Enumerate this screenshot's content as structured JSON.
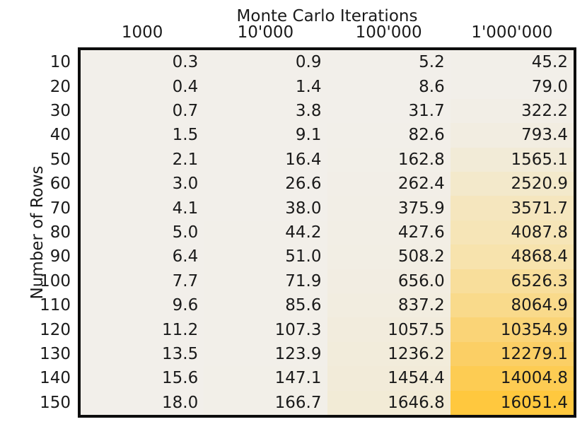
{
  "chart_data": {
    "type": "heatmap",
    "title": "Monte Carlo Iterations",
    "xlabel": "Monte Carlo Iterations",
    "ylabel": "Number of Rows",
    "x_tick_labels": [
      "1000",
      "10'000",
      "100'000",
      "1'000'000"
    ],
    "y_tick_labels": [
      "10",
      "20",
      "30",
      "40",
      "50",
      "60",
      "70",
      "80",
      "90",
      "100",
      "110",
      "120",
      "130",
      "140",
      "150"
    ],
    "values": [
      [
        0.3,
        0.9,
        5.2,
        45.2
      ],
      [
        0.4,
        1.4,
        8.6,
        79.0
      ],
      [
        0.7,
        3.8,
        31.7,
        322.2
      ],
      [
        1.5,
        9.1,
        82.6,
        793.4
      ],
      [
        2.1,
        16.4,
        162.8,
        1565.1
      ],
      [
        3.0,
        26.6,
        262.4,
        2520.9
      ],
      [
        4.1,
        38.0,
        375.9,
        3571.7
      ],
      [
        5.0,
        44.2,
        427.6,
        4087.8
      ],
      [
        6.4,
        51.0,
        508.2,
        4868.4
      ],
      [
        7.7,
        71.9,
        656.0,
        6526.3
      ],
      [
        9.6,
        85.6,
        837.2,
        8064.9
      ],
      [
        11.2,
        107.3,
        1057.5,
        10354.9
      ],
      [
        13.5,
        123.9,
        1236.2,
        12279.1
      ],
      [
        15.6,
        147.1,
        1454.4,
        14004.8
      ],
      [
        18.0,
        166.7,
        1646.8,
        16051.4
      ]
    ],
    "decimals": 1,
    "grid": false,
    "legend": false,
    "color_scale": {
      "min": 0,
      "max": 16051.4,
      "stops": [
        {
          "at": 0.0,
          "color": "#f2efea"
        },
        {
          "at": 0.1,
          "color": "#f2ebd7"
        },
        {
          "at": 0.3,
          "color": "#f7e3ae"
        },
        {
          "at": 0.5,
          "color": "#f9da8b"
        },
        {
          "at": 0.75,
          "color": "#fbcf68"
        },
        {
          "at": 1.0,
          "color": "#ffc83e"
        }
      ]
    },
    "border_color": "#0d0d0d",
    "text_color": "#1a1a1a",
    "background_color": "#ffffff"
  }
}
